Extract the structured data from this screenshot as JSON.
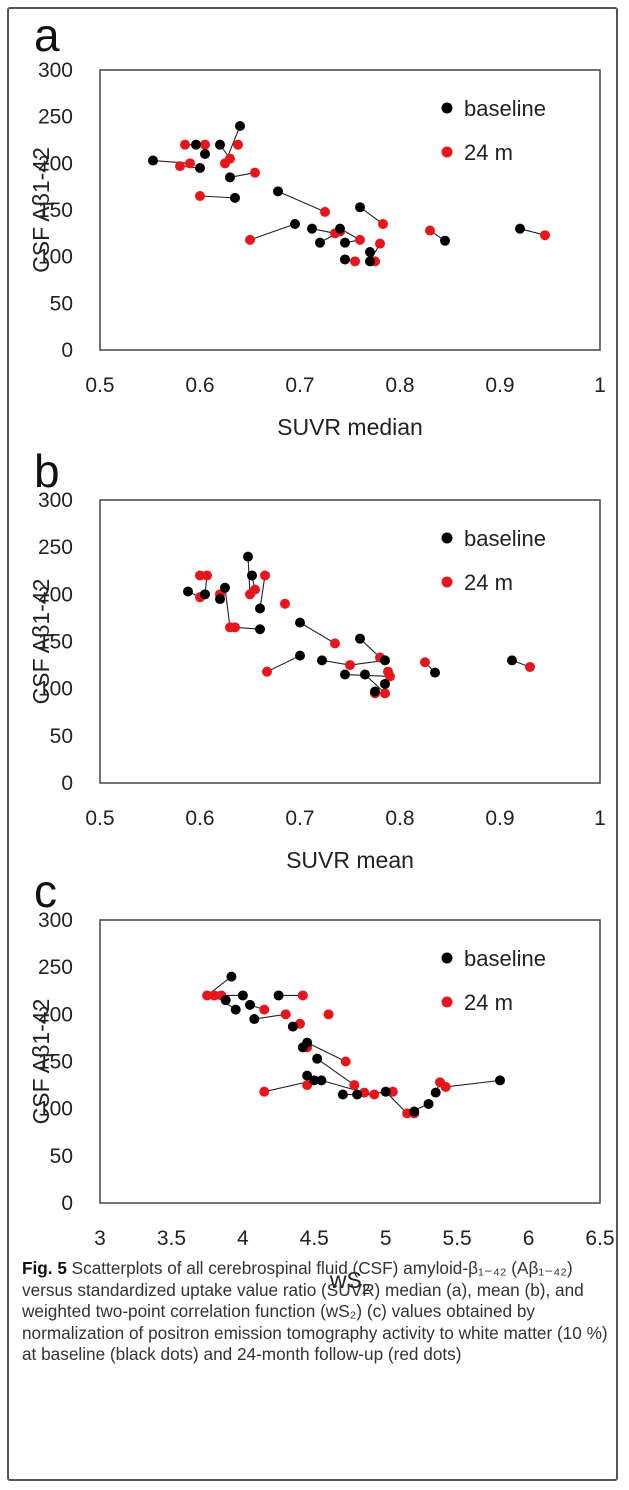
{
  "panels_letters": [
    "a",
    "b",
    "c"
  ],
  "legend": {
    "baseline": "baseline",
    "followup": "24 m",
    "baseline_color": "#000000",
    "followup_color": "#e8161b"
  },
  "chart_data": [
    {
      "type": "scatter",
      "panel": "a",
      "xlabel": "SUVR median",
      "ylabel": "CSF Aβ1-42",
      "xlim": [
        0.5,
        1
      ],
      "ylim": [
        0,
        300
      ],
      "xticks": [
        0.5,
        0.6,
        0.7,
        0.8,
        0.9,
        1
      ],
      "xtick_labels": [
        "0.5",
        "0.6",
        "0.7",
        "0.8",
        "0.9",
        "1"
      ],
      "yticks": [
        0,
        50,
        100,
        150,
        200,
        250,
        300
      ],
      "series": [
        {
          "name": "baseline",
          "x": [
            0.553,
            0.596,
            0.6,
            0.605,
            0.62,
            0.63,
            0.64,
            0.635,
            0.678,
            0.695,
            0.712,
            0.72,
            0.74,
            0.745,
            0.76,
            0.77,
            0.745,
            0.77,
            0.845,
            0.92
          ],
          "y": [
            203,
            220,
            195,
            210,
            220,
            185,
            240,
            163,
            170,
            135,
            130,
            115,
            130,
            115,
            153,
            105,
            97,
            95,
            117,
            130
          ]
        },
        {
          "name": "24 m",
          "x": [
            0.585,
            0.58,
            0.59,
            0.605,
            0.63,
            0.638,
            0.625,
            0.655,
            0.6,
            0.65,
            0.725,
            0.735,
            0.74,
            0.76,
            0.755,
            0.775,
            0.78,
            0.783,
            0.83,
            0.945
          ],
          "y": [
            220,
            197,
            200,
            220,
            205,
            220,
            200,
            190,
            165,
            118,
            148,
            125,
            127,
            118,
            95,
            95,
            114,
            135,
            128,
            123
          ]
        }
      ],
      "pairs": [
        [
          0,
          2
        ],
        [
          1,
          0
        ],
        [
          2,
          1
        ],
        [
          3,
          3
        ],
        [
          4,
          4
        ],
        [
          5,
          7
        ],
        [
          6,
          6
        ],
        [
          7,
          8
        ],
        [
          8,
          10
        ],
        [
          9,
          9
        ],
        [
          10,
          11
        ],
        [
          11,
          12
        ],
        [
          12,
          13
        ],
        [
          13,
          13
        ],
        [
          14,
          17
        ],
        [
          15,
          15
        ],
        [
          16,
          14
        ],
        [
          17,
          16
        ],
        [
          18,
          18
        ],
        [
          19,
          19
        ]
      ]
    },
    {
      "type": "scatter",
      "panel": "b",
      "xlabel": "SUVR mean",
      "ylabel": "CSF Aβ1-42",
      "xlim": [
        0.5,
        1
      ],
      "ylim": [
        0,
        300
      ],
      "xticks": [
        0.5,
        0.6,
        0.7,
        0.8,
        0.9,
        1
      ],
      "xtick_labels": [
        "0.5",
        "0.6",
        "0.7",
        "0.8",
        "0.9",
        "1"
      ],
      "yticks": [
        0,
        50,
        100,
        150,
        200,
        250,
        300
      ],
      "series": [
        {
          "name": "baseline",
          "x": [
            0.588,
            0.605,
            0.62,
            0.625,
            0.648,
            0.652,
            0.66,
            0.66,
            0.7,
            0.7,
            0.722,
            0.745,
            0.76,
            0.765,
            0.775,
            0.785,
            0.785,
            0.835,
            0.912
          ],
          "y": [
            203,
            200,
            195,
            207,
            240,
            220,
            185,
            163,
            170,
            135,
            130,
            115,
            153,
            115,
            97,
            105,
            130,
            117,
            130
          ]
        },
        {
          "name": "24 m",
          "x": [
            0.6,
            0.6,
            0.607,
            0.62,
            0.63,
            0.655,
            0.665,
            0.685,
            0.635,
            0.667,
            0.735,
            0.75,
            0.78,
            0.775,
            0.79,
            0.785,
            0.788,
            0.825,
            0.93,
            0.65
          ],
          "y": [
            220,
            197,
            220,
            200,
            165,
            205,
            220,
            190,
            165,
            118,
            148,
            125,
            133,
            95,
            113,
            95,
            118,
            128,
            123,
            200
          ]
        }
      ],
      "pairs": [
        [
          0,
          1
        ],
        [
          1,
          2
        ],
        [
          2,
          3
        ],
        [
          3,
          4
        ],
        [
          4,
          19
        ],
        [
          5,
          5
        ],
        [
          6,
          6
        ],
        [
          7,
          8
        ],
        [
          8,
          10
        ],
        [
          9,
          9
        ],
        [
          10,
          11
        ],
        [
          11,
          14
        ],
        [
          12,
          12
        ],
        [
          13,
          15
        ],
        [
          14,
          13
        ],
        [
          15,
          16
        ],
        [
          16,
          11
        ],
        [
          17,
          17
        ],
        [
          18,
          18
        ]
      ]
    },
    {
      "type": "scatter",
      "panel": "c",
      "xlabel": "wS2",
      "ylabel": "CSF Aβ1-42",
      "xlim": [
        3,
        6.5
      ],
      "ylim": [
        0,
        300
      ],
      "xticks": [
        3,
        3.5,
        4,
        4.5,
        5,
        5.5,
        6,
        6.5
      ],
      "xtick_labels": [
        "3",
        "3.5",
        "4",
        "4.5",
        "5",
        "5.5",
        "6",
        "6.5"
      ],
      "yticks": [
        0,
        50,
        100,
        150,
        200,
        250,
        300
      ],
      "series": [
        {
          "name": "baseline",
          "x": [
            3.92,
            3.88,
            3.95,
            4.0,
            4.05,
            4.08,
            4.25,
            4.35,
            4.42,
            4.45,
            4.52,
            4.45,
            4.5,
            4.55,
            4.7,
            4.8,
            5.0,
            5.2,
            5.3,
            5.35,
            5.8
          ],
          "y": [
            240,
            215,
            205,
            220,
            210,
            195,
            220,
            187,
            165,
            170,
            153,
            135,
            130,
            130,
            115,
            115,
            118,
            97,
            105,
            117,
            130
          ]
        },
        {
          "name": "24 m",
          "x": [
            3.75,
            3.8,
            3.85,
            4.15,
            4.3,
            4.4,
            4.42,
            4.6,
            4.45,
            4.72,
            4.78,
            4.85,
            4.92,
            5.15,
            5.2,
            5.38,
            5.42,
            4.15,
            4.45,
            5.05
          ],
          "y": [
            220,
            220,
            220,
            205,
            200,
            190,
            220,
            200,
            165,
            150,
            125,
            117,
            115,
            95,
            95,
            128,
            123,
            118,
            125,
            118
          ]
        }
      ],
      "pairs": [
        [
          0,
          0
        ],
        [
          1,
          1
        ],
        [
          2,
          1
        ],
        [
          3,
          2
        ],
        [
          4,
          3
        ],
        [
          5,
          4
        ],
        [
          6,
          6
        ],
        [
          7,
          5
        ],
        [
          8,
          8
        ],
        [
          9,
          9
        ],
        [
          10,
          10
        ],
        [
          11,
          18
        ],
        [
          12,
          17
        ],
        [
          13,
          11
        ],
        [
          14,
          12
        ],
        [
          15,
          19
        ],
        [
          16,
          13
        ],
        [
          17,
          14
        ],
        [
          18,
          13
        ],
        [
          19,
          15
        ],
        [
          20,
          16
        ]
      ]
    }
  ],
  "caption": {
    "fig_label": "Fig. 5",
    "text": " Scatterplots of all cerebrospinal fluid (CSF) amyloid-β₁₋₄₂ (Aβ₁₋₄₂) versus standardized uptake value ratio (SUVR) median (a), mean (b), and weighted two-point correlation function (wS₂) (c) values obtained by normalization of positron emission tomography activity to white matter (10 %) at baseline (black dots) and 24-month follow-up (red dots)"
  }
}
